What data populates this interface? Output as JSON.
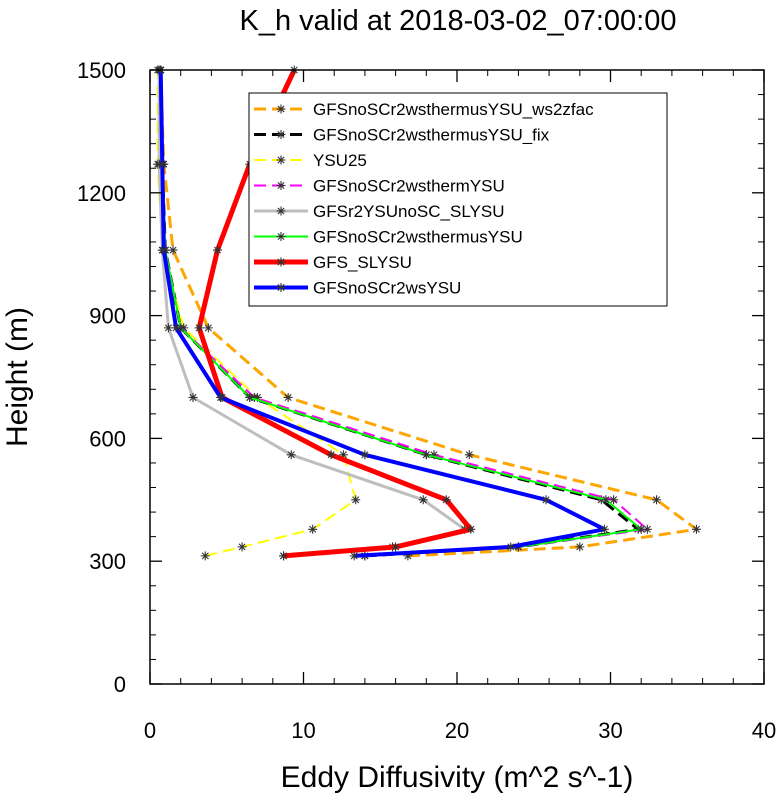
{
  "chart_data": {
    "type": "line",
    "title": "K_h valid at 2018-03-02_07:00:00",
    "xlabel": "Eddy Diffusivity (m^2 s^-1)",
    "ylabel": "Height (m)",
    "xlim": [
      0,
      40
    ],
    "ylim": [
      0,
      1500
    ],
    "xticks": [
      0,
      10,
      20,
      30,
      40
    ],
    "yticks": [
      0,
      300,
      600,
      900,
      1200,
      1500
    ],
    "grid": false,
    "legend_position": "top-right",
    "series": [
      {
        "name": "GFSnoSCr2wsthermusYSU_ws2zfac",
        "color": "#FFA500",
        "style": "dashed",
        "width": 3,
        "points": [
          [
            16.8,
            313
          ],
          [
            28.0,
            335
          ],
          [
            35.6,
            378
          ],
          [
            33.0,
            450
          ],
          [
            20.8,
            560
          ],
          [
            9.0,
            700
          ],
          [
            3.8,
            870
          ],
          [
            1.5,
            1060
          ],
          [
            0.9,
            1270
          ],
          [
            0.7,
            1500
          ]
        ]
      },
      {
        "name": "GFSnoSCr2wsthermusYSU_fix",
        "color": "#000000",
        "style": "dashed",
        "width": 3,
        "points": [
          [
            14.0,
            313
          ],
          [
            24.0,
            335
          ],
          [
            31.8,
            378
          ],
          [
            29.4,
            450
          ],
          [
            18.0,
            560
          ],
          [
            6.5,
            700
          ],
          [
            2.0,
            870
          ],
          [
            1.0,
            1060
          ],
          [
            0.8,
            1270
          ],
          [
            0.7,
            1500
          ]
        ]
      },
      {
        "name": "YSU25",
        "color": "#FFFF00",
        "style": "dashed",
        "width": 2,
        "points": [
          [
            3.6,
            313
          ],
          [
            6.0,
            335
          ],
          [
            10.6,
            378
          ],
          [
            13.4,
            450
          ],
          [
            12.6,
            560
          ],
          [
            7.0,
            700
          ],
          [
            2.2,
            870
          ],
          [
            0.8,
            1060
          ],
          [
            0.5,
            1270
          ],
          [
            0.5,
            1500
          ]
        ]
      },
      {
        "name": "GFSnoSCr2wsthermYSU",
        "color": "#FF00FF",
        "style": "dashed",
        "width": 2,
        "points": [
          [
            14.0,
            313
          ],
          [
            24.0,
            335
          ],
          [
            32.4,
            378
          ],
          [
            30.2,
            450
          ],
          [
            18.5,
            560
          ],
          [
            6.8,
            700
          ],
          [
            2.0,
            870
          ],
          [
            1.0,
            1060
          ],
          [
            0.8,
            1270
          ],
          [
            0.7,
            1500
          ]
        ]
      },
      {
        "name": "GFSr2YSUnoSC_SLYSU",
        "color": "#BEBEBE",
        "style": "solid",
        "width": 3,
        "points": [
          [
            8.7,
            313
          ],
          [
            15.8,
            335
          ],
          [
            20.5,
            378
          ],
          [
            17.8,
            450
          ],
          [
            9.2,
            560
          ],
          [
            2.8,
            700
          ],
          [
            1.2,
            870
          ],
          [
            0.8,
            1060
          ],
          [
            0.6,
            1270
          ],
          [
            0.6,
            1500
          ]
        ]
      },
      {
        "name": "GFSnoSCr2wsthermusYSU",
        "color": "#00FF00",
        "style": "solid",
        "width": 2,
        "points": [
          [
            14.0,
            313
          ],
          [
            24.0,
            335
          ],
          [
            32.0,
            378
          ],
          [
            29.7,
            450
          ],
          [
            18.0,
            560
          ],
          [
            6.5,
            700
          ],
          [
            2.0,
            870
          ],
          [
            1.0,
            1060
          ],
          [
            0.8,
            1270
          ],
          [
            0.7,
            1500
          ]
        ]
      },
      {
        "name": "GFS_SLYSU",
        "color": "#FF0000",
        "style": "solid",
        "width": 5,
        "points": [
          [
            8.7,
            313
          ],
          [
            16.0,
            335
          ],
          [
            20.9,
            378
          ],
          [
            19.3,
            450
          ],
          [
            11.8,
            560
          ],
          [
            4.7,
            700
          ],
          [
            3.2,
            870
          ],
          [
            4.4,
            1060
          ],
          [
            6.5,
            1270
          ],
          [
            9.4,
            1500
          ]
        ]
      },
      {
        "name": "GFSnoSCr2wsYSU",
        "color": "#0000FF",
        "style": "solid",
        "width": 4,
        "points": [
          [
            13.3,
            313
          ],
          [
            23.5,
            335
          ],
          [
            29.6,
            378
          ],
          [
            25.8,
            450
          ],
          [
            14.0,
            560
          ],
          [
            4.6,
            700
          ],
          [
            1.7,
            870
          ],
          [
            0.9,
            1060
          ],
          [
            0.8,
            1270
          ],
          [
            0.7,
            1500
          ]
        ]
      }
    ]
  }
}
